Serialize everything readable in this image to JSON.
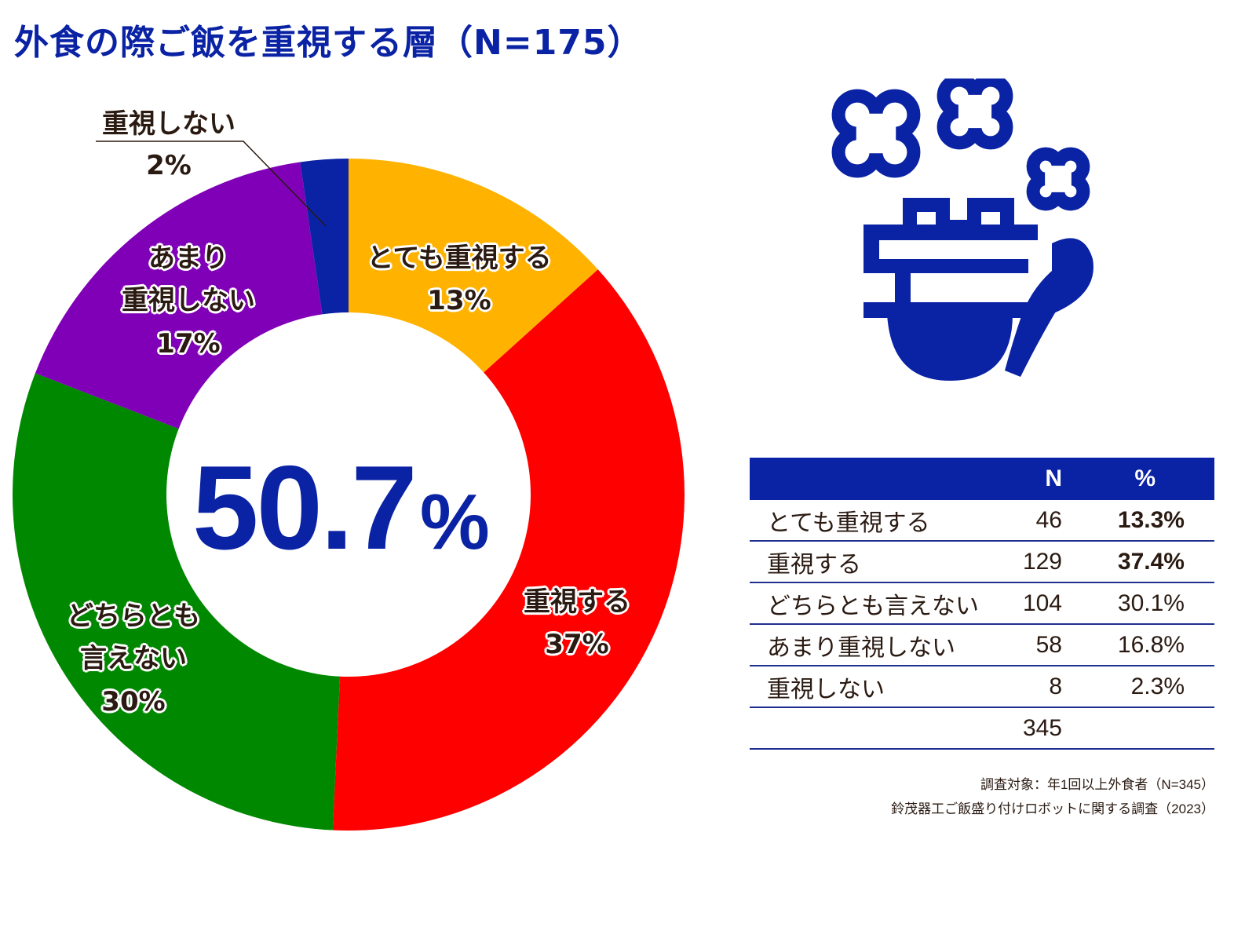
{
  "title": "外食の際ご飯を重視する層（N=175）",
  "center": {
    "value": "50.7",
    "unit": "%"
  },
  "colors": {
    "brand_blue": "#0a22a4",
    "very_important": "#ffb300",
    "important": "#ff0000",
    "neutral": "#008800",
    "not_very": "#8000b8",
    "not_at_all": "#0a22a4"
  },
  "chart_data": {
    "type": "pie",
    "donut": true,
    "categories": [
      "とても重視する",
      "重視する",
      "どちらとも言えない",
      "あまり重視しない",
      "重視しない"
    ],
    "values": [
      13.3,
      37.4,
      30.1,
      16.8,
      2.3
    ],
    "labels": [
      {
        "lines": [
          "とても重視する",
          "13%"
        ]
      },
      {
        "lines": [
          "重視する",
          "37%"
        ]
      },
      {
        "lines": [
          "どちらとも",
          "言えない",
          "30%"
        ]
      },
      {
        "lines": [
          "あまり",
          "重視しない",
          "17%"
        ]
      },
      {
        "lines": [
          "重視しない",
          "2%"
        ]
      }
    ]
  },
  "table": {
    "headers": [
      "",
      "N",
      "%"
    ],
    "rows": [
      {
        "label": "とても重視する",
        "n": "46",
        "pct": "13.3%",
        "bold": true
      },
      {
        "label": "重視する",
        "n": "129",
        "pct": "37.4%",
        "bold": true
      },
      {
        "label": "どちらとも言えない",
        "n": "104",
        "pct": "30.1%",
        "bold": false
      },
      {
        "label": "あまり重視しない",
        "n": "58",
        "pct": "16.8%",
        "bold": false
      },
      {
        "label": "重視しない",
        "n": "8",
        "pct": "2.3%",
        "bold": false
      }
    ],
    "total": "345"
  },
  "notes": [
    "調査対象：年1回以上外食者（N=345）",
    "鈴茂器工ご飯盛り付けロボットに関する調査（2023）"
  ],
  "icon": "rice-bowl-with-paddle-icon"
}
